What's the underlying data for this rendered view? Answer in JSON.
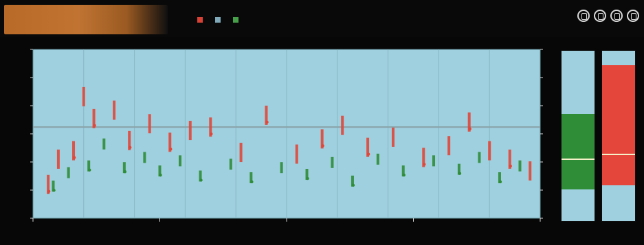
{
  "app": {
    "title": ""
  },
  "toolbar": {
    "legend_items": [
      {
        "name": "",
        "color": "#d84135"
      },
      {
        "name": "",
        "color": "#7fa9b8"
      },
      {
        "name": "",
        "color": "#46a04a"
      }
    ],
    "icons": [
      "settings-icon",
      "lock-icon",
      "screen-icon",
      "profile-icon"
    ]
  },
  "chart_data": {
    "type": "scatter",
    "title": "",
    "xlabel": "",
    "ylabel": "",
    "xlim": [
      0,
      10
    ],
    "ylim": [
      0,
      10
    ],
    "grid": true,
    "legend_placement": "top",
    "colors": {
      "plot_bg": "#9fd0df",
      "red": "#e14638",
      "green": "#2f8c37",
      "guide_line": "#8aa2a8"
    },
    "ticks": {
      "x": [
        "",
        "",
        "",
        "",
        ""
      ],
      "left_y": [
        "",
        "",
        "",
        "",
        "",
        "",
        ""
      ],
      "right_y": [
        "",
        "",
        "",
        "",
        "",
        "",
        ""
      ]
    },
    "series": [
      {
        "name": "",
        "color": "#e14638",
        "points": [
          {
            "x": 0.3,
            "y": 2.0
          },
          {
            "x": 0.5,
            "y": 3.5
          },
          {
            "x": 0.8,
            "y": 4.0
          },
          {
            "x": 1.0,
            "y": 7.2
          },
          {
            "x": 1.2,
            "y": 5.9
          },
          {
            "x": 1.6,
            "y": 6.4
          },
          {
            "x": 1.9,
            "y": 4.6
          },
          {
            "x": 2.3,
            "y": 5.6
          },
          {
            "x": 2.7,
            "y": 4.5
          },
          {
            "x": 3.1,
            "y": 5.2
          },
          {
            "x": 3.5,
            "y": 5.4
          },
          {
            "x": 4.1,
            "y": 3.9
          },
          {
            "x": 4.6,
            "y": 6.1
          },
          {
            "x": 5.2,
            "y": 3.8
          },
          {
            "x": 5.7,
            "y": 4.7
          },
          {
            "x": 6.1,
            "y": 5.5
          },
          {
            "x": 6.6,
            "y": 4.2
          },
          {
            "x": 7.1,
            "y": 4.8
          },
          {
            "x": 7.7,
            "y": 3.6
          },
          {
            "x": 8.2,
            "y": 4.3
          },
          {
            "x": 8.6,
            "y": 5.7
          },
          {
            "x": 9.0,
            "y": 4.0
          },
          {
            "x": 9.4,
            "y": 3.5
          },
          {
            "x": 9.8,
            "y": 2.8
          }
        ]
      },
      {
        "name": "",
        "color": "#2f8c37",
        "points": [
          {
            "x": 0.4,
            "y": 1.9
          },
          {
            "x": 0.7,
            "y": 2.7
          },
          {
            "x": 1.1,
            "y": 3.1
          },
          {
            "x": 1.4,
            "y": 4.4
          },
          {
            "x": 1.8,
            "y": 3.0
          },
          {
            "x": 2.2,
            "y": 3.6
          },
          {
            "x": 2.5,
            "y": 2.8
          },
          {
            "x": 2.9,
            "y": 3.4
          },
          {
            "x": 3.3,
            "y": 2.5
          },
          {
            "x": 3.9,
            "y": 3.2
          },
          {
            "x": 4.3,
            "y": 2.4
          },
          {
            "x": 4.9,
            "y": 3.0
          },
          {
            "x": 5.4,
            "y": 2.6
          },
          {
            "x": 5.9,
            "y": 3.3
          },
          {
            "x": 6.3,
            "y": 2.2
          },
          {
            "x": 6.8,
            "y": 3.5
          },
          {
            "x": 7.3,
            "y": 2.8
          },
          {
            "x": 7.9,
            "y": 3.4
          },
          {
            "x": 8.4,
            "y": 2.9
          },
          {
            "x": 8.8,
            "y": 3.6
          },
          {
            "x": 9.2,
            "y": 2.4
          },
          {
            "x": 9.6,
            "y": 3.1
          }
        ]
      }
    ],
    "guide_value": 5.4
  },
  "side_panels": [
    {
      "fill_color": "#2f8c37",
      "fill_fraction": 0.44,
      "marker_fraction": 0.5
    },
    {
      "fill_color": "#e5463b",
      "fill_fraction": 0.71,
      "marker_fraction": 0.46
    }
  ]
}
